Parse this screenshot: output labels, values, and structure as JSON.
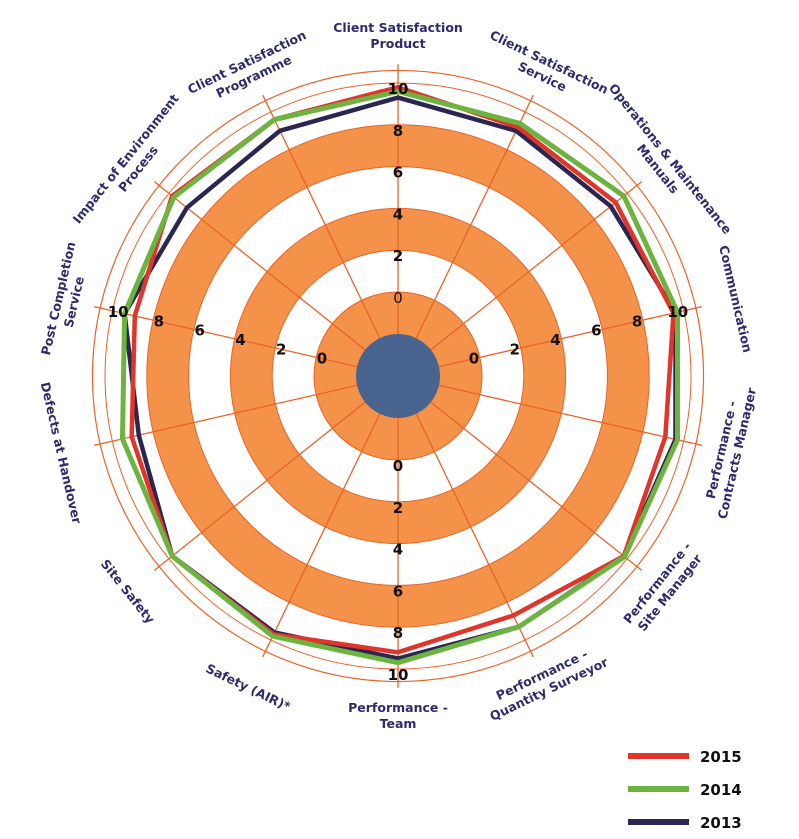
{
  "chart_data": {
    "type": "radar",
    "title": "",
    "categories": [
      "Client Satisfaction|Product",
      "Client Satisfaction|Service",
      "Operations & Maintenance|Manuals",
      "Communication",
      "Performance -|Contracts Manager",
      "Performance -|Site Manager",
      "Performance -|Quantity Surveyor",
      "Performance -|Team",
      "Safety (AIR)*",
      "Site Safety",
      "Defects at Handover",
      "Post Completion|Service",
      "Impact of Environment|Process",
      "Client Satisfaction|Programme"
    ],
    "rlim": [
      0,
      10
    ],
    "ticks": [
      "0",
      "2",
      "4",
      "6",
      "8",
      "10"
    ],
    "series": [
      {
        "name": "2015",
        "color": "#e0352b",
        "values": [
          9.8,
          9.2,
          9.3,
          9.5,
          9.1,
          9.8,
          8.7,
          9.2,
          9.7,
          9.8,
          9.05,
          8.9,
          9.8,
          9.6
        ]
      },
      {
        "name": "2014",
        "color": "#6db33f",
        "values": [
          9.6,
          9.4,
          9.8,
          9.7,
          9.7,
          9.85,
          9.3,
          9.7,
          9.8,
          9.8,
          9.5,
          9.4,
          9.7,
          9.6
        ]
      },
      {
        "name": "2013",
        "color": "#2b2650",
        "values": [
          9.3,
          9.0,
          9.0,
          9.6,
          9.6,
          9.8,
          9.3,
          9.5,
          9.6,
          9.8,
          8.7,
          9.4,
          8.9,
          9.0
        ]
      }
    ],
    "legend_position": "bottom-right",
    "band_color": "#f39248",
    "grid_color": "#e8642a",
    "center_color": "#4a6490"
  }
}
